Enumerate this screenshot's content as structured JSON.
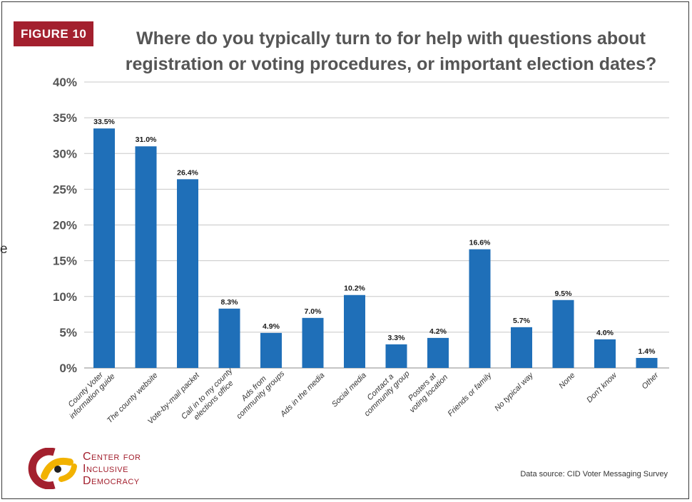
{
  "figure_label": "FIGURE 10",
  "title_line1": "Where do you typically turn to for help with questions about",
  "title_line2": "registration or voting procedures, or important election dates?",
  "edge_mark": "e",
  "source": "Data source: CID Voter Messaging Survey",
  "logo": {
    "line1": "Center for",
    "line2": "Inclusive",
    "line3": "Democracy",
    "colors": {
      "red": "#a3202e",
      "gold": "#f2b200",
      "dark": "#1f1f1f"
    }
  },
  "colors": {
    "bar": "#1f6fb8",
    "grid": "#c8c8c8",
    "axis_text": "#555555",
    "badge": "#a3202e"
  },
  "chart_data": {
    "type": "bar",
    "title": "Where do you typically turn to for help with questions about registration or voting procedures, or important election dates?",
    "xlabel": "",
    "ylabel": "",
    "ylim": [
      0,
      40
    ],
    "yticks": [
      0,
      5,
      10,
      15,
      20,
      25,
      30,
      35,
      40
    ],
    "ytick_labels": [
      "0%",
      "5%",
      "10%",
      "15%",
      "20%",
      "25%",
      "30%",
      "35%",
      "40%"
    ],
    "grid": true,
    "categories": [
      [
        "County Voter",
        "information guide"
      ],
      [
        "The county website"
      ],
      [
        "Vote-by-mail packet"
      ],
      [
        "Call in to my county",
        "elections office"
      ],
      [
        "Ads from",
        "community groups"
      ],
      [
        "Ads in the media"
      ],
      [
        "Social media"
      ],
      [
        "Contact a",
        "community group"
      ],
      [
        "Posters at",
        "voting location"
      ],
      [
        "Friends or family"
      ],
      [
        "No typical way"
      ],
      [
        "None"
      ],
      [
        "Don't know"
      ],
      [
        "Other"
      ]
    ],
    "values": [
      33.5,
      31.0,
      26.4,
      8.3,
      4.9,
      7.0,
      10.2,
      3.3,
      4.2,
      16.6,
      5.7,
      9.5,
      4.0,
      1.4
    ],
    "value_labels": [
      "33.5%",
      "31.0%",
      "26.4%",
      "8.3%",
      "4.9%",
      "7.0%",
      "10.2%",
      "3.3%",
      "4.2%",
      "16.6%",
      "5.7%",
      "9.5%",
      "4.0%",
      "1.4%"
    ]
  }
}
